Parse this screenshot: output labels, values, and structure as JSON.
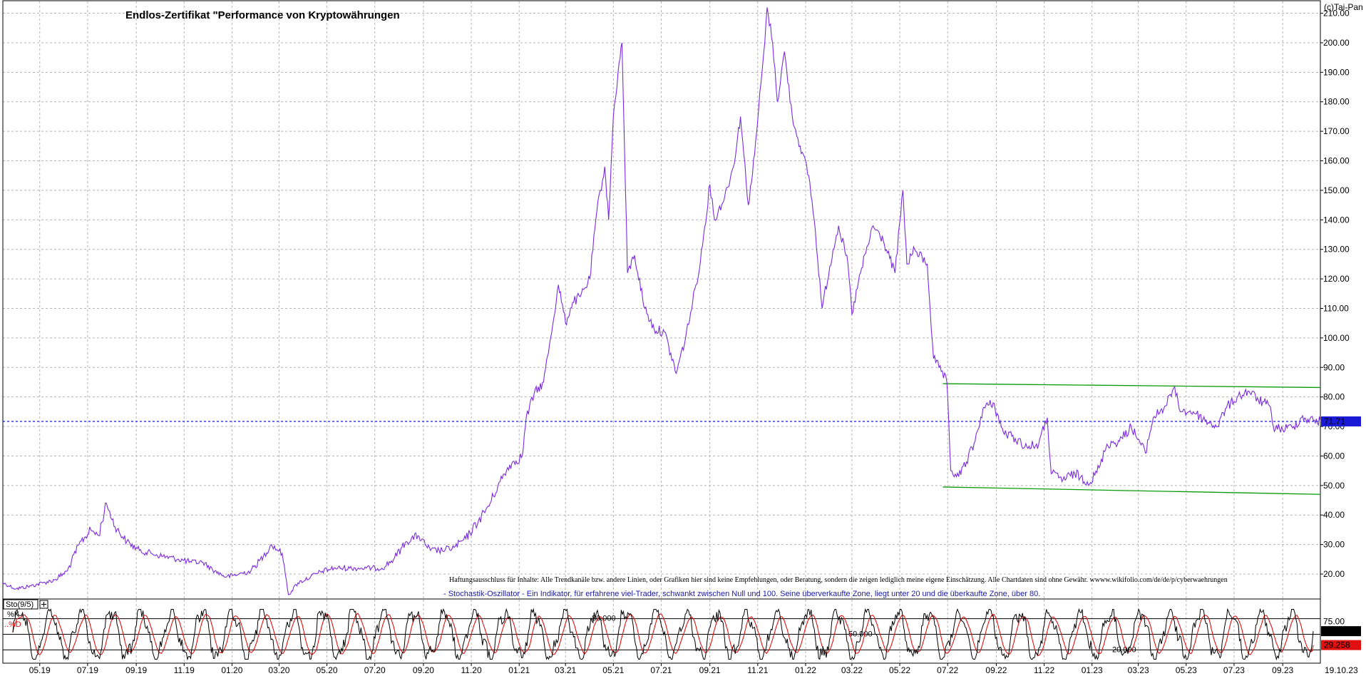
{
  "chart_data": [
    {
      "type": "line",
      "title": "Endlos-Zertifikat \"Performance von Kryptowährungen",
      "copyright": "(c)Tai-Pan",
      "x_ticks": [
        "05.19",
        "07.19",
        "09.19",
        "11.19",
        "01.20",
        "03.20",
        "05.20",
        "07.20",
        "09.20",
        "11.20",
        "01.21",
        "03.21",
        "05.21",
        "07.21",
        "09.21",
        "11.21",
        "01.22",
        "03.22",
        "05.22",
        "07.22",
        "09.22",
        "11.22",
        "01.23",
        "03.23",
        "05.23",
        "07.23",
        "09.23"
      ],
      "x_range": [
        "2019-03-15",
        "2023-10-19"
      ],
      "last_date": "19.10.23",
      "y_ticks": [
        "20.00",
        "30.00",
        "40.00",
        "50.00",
        "60.00",
        "70.00",
        "80.00",
        "90.00",
        "100.00",
        "110.00",
        "120.00",
        "130.00",
        "140.00",
        "150.00",
        "160.00",
        "170.00",
        "180.00",
        "190.00",
        "200.00",
        "210.00"
      ],
      "ylim": [
        13,
        214
      ],
      "grid": true,
      "last_value": "71.71",
      "price_line_color": "#7a2be2",
      "current_value_line": 71.71,
      "series": [
        {
          "points": [
            [
              "2019-03-15",
              17
            ],
            [
              "2019-04-01",
              15
            ],
            [
              "2019-04-20",
              16
            ],
            [
              "2019-05-05",
              17
            ],
            [
              "2019-05-20",
              18
            ],
            [
              "2019-06-05",
              21
            ],
            [
              "2019-06-20",
              30
            ],
            [
              "2019-07-05",
              35
            ],
            [
              "2019-07-15",
              33
            ],
            [
              "2019-07-25",
              44
            ],
            [
              "2019-08-05",
              36
            ],
            [
              "2019-08-20",
              31
            ],
            [
              "2019-09-05",
              28
            ],
            [
              "2019-09-20",
              27
            ],
            [
              "2019-10-05",
              26
            ],
            [
              "2019-10-25",
              25
            ],
            [
              "2019-11-10",
              24
            ],
            [
              "2019-11-25",
              24
            ],
            [
              "2019-12-10",
              21
            ],
            [
              "2019-12-25",
              19
            ],
            [
              "2020-01-10",
              20
            ],
            [
              "2020-01-25",
              21
            ],
            [
              "2020-02-10",
              26
            ],
            [
              "2020-02-20",
              30
            ],
            [
              "2020-03-05",
              27
            ],
            [
              "2020-03-13",
              13
            ],
            [
              "2020-03-25",
              17
            ],
            [
              "2020-04-10",
              19
            ],
            [
              "2020-04-25",
              21
            ],
            [
              "2020-05-10",
              22
            ],
            [
              "2020-05-30",
              22
            ],
            [
              "2020-06-20",
              22
            ],
            [
              "2020-07-10",
              22
            ],
            [
              "2020-07-25",
              25
            ],
            [
              "2020-08-10",
              31
            ],
            [
              "2020-08-25",
              33
            ],
            [
              "2020-09-10",
              28
            ],
            [
              "2020-09-25",
              28
            ],
            [
              "2020-10-10",
              29
            ],
            [
              "2020-10-25",
              32
            ],
            [
              "2020-11-10",
              38
            ],
            [
              "2020-11-25",
              44
            ],
            [
              "2020-12-05",
              50
            ],
            [
              "2020-12-20",
              57
            ],
            [
              "2021-01-05",
              60
            ],
            [
              "2021-01-10",
              73
            ],
            [
              "2021-01-20",
              81
            ],
            [
              "2021-02-01",
              85
            ],
            [
              "2021-02-10",
              100
            ],
            [
              "2021-02-20",
              118
            ],
            [
              "2021-03-01",
              105
            ],
            [
              "2021-03-10",
              112
            ],
            [
              "2021-03-20",
              114
            ],
            [
              "2021-04-01",
              120
            ],
            [
              "2021-04-10",
              143
            ],
            [
              "2021-04-20",
              158
            ],
            [
              "2021-04-25",
              140
            ],
            [
              "2021-05-01",
              175
            ],
            [
              "2021-05-07",
              190
            ],
            [
              "2021-05-12",
              200
            ],
            [
              "2021-05-19",
              122
            ],
            [
              "2021-05-28",
              128
            ],
            [
              "2021-06-10",
              110
            ],
            [
              "2021-06-22",
              103
            ],
            [
              "2021-07-05",
              102
            ],
            [
              "2021-07-20",
              88
            ],
            [
              "2021-08-01",
              100
            ],
            [
              "2021-08-10",
              112
            ],
            [
              "2021-08-20",
              126
            ],
            [
              "2021-09-01",
              152
            ],
            [
              "2021-09-07",
              140
            ],
            [
              "2021-09-20",
              148
            ],
            [
              "2021-10-01",
              158
            ],
            [
              "2021-10-10",
              175
            ],
            [
              "2021-10-20",
              145
            ],
            [
              "2021-10-28",
              162
            ],
            [
              "2021-11-05",
              186
            ],
            [
              "2021-11-10",
              200
            ],
            [
              "2021-11-13",
              212
            ],
            [
              "2021-11-20",
              200
            ],
            [
              "2021-11-26",
              180
            ],
            [
              "2021-12-05",
              197
            ],
            [
              "2021-12-15",
              175
            ],
            [
              "2021-12-25",
              165
            ],
            [
              "2022-01-05",
              155
            ],
            [
              "2022-01-12",
              140
            ],
            [
              "2022-01-22",
              110
            ],
            [
              "2022-02-05",
              130
            ],
            [
              "2022-02-12",
              138
            ],
            [
              "2022-02-24",
              125
            ],
            [
              "2022-03-01",
              108
            ],
            [
              "2022-03-12",
              122
            ],
            [
              "2022-03-28",
              138
            ],
            [
              "2022-04-10",
              133
            ],
            [
              "2022-04-25",
              122
            ],
            [
              "2022-05-05",
              150
            ],
            [
              "2022-05-10",
              125
            ],
            [
              "2022-05-20",
              130
            ],
            [
              "2022-06-05",
              125
            ],
            [
              "2022-06-13",
              93
            ],
            [
              "2022-06-20",
              90
            ],
            [
              "2022-06-30",
              85
            ],
            [
              "2022-07-05",
              55
            ],
            [
              "2022-07-15",
              53
            ],
            [
              "2022-07-25",
              58
            ],
            [
              "2022-08-05",
              65
            ],
            [
              "2022-08-15",
              76
            ],
            [
              "2022-08-28",
              78
            ],
            [
              "2022-09-10",
              68
            ],
            [
              "2022-09-25",
              66
            ],
            [
              "2022-10-10",
              63
            ],
            [
              "2022-10-25",
              64
            ],
            [
              "2022-11-05",
              73
            ],
            [
              "2022-11-10",
              54
            ],
            [
              "2022-11-25",
              52
            ],
            [
              "2022-12-10",
              54
            ],
            [
              "2022-12-30",
              51
            ],
            [
              "2023-01-10",
              56
            ],
            [
              "2023-01-20",
              64
            ],
            [
              "2023-02-05",
              65
            ],
            [
              "2023-02-20",
              70
            ],
            [
              "2023-03-10",
              61
            ],
            [
              "2023-03-20",
              73
            ],
            [
              "2023-04-05",
              77
            ],
            [
              "2023-04-15",
              83
            ],
            [
              "2023-04-25",
              75
            ],
            [
              "2023-05-10",
              75
            ],
            [
              "2023-05-25",
              72
            ],
            [
              "2023-06-10",
              70
            ],
            [
              "2023-06-20",
              76
            ],
            [
              "2023-07-05",
              80
            ],
            [
              "2023-07-20",
              82
            ],
            [
              "2023-08-01",
              79
            ],
            [
              "2023-08-15",
              77
            ],
            [
              "2023-08-20",
              70
            ],
            [
              "2023-09-01",
              69
            ],
            [
              "2023-09-15",
              70
            ],
            [
              "2023-09-25",
              73
            ],
            [
              "2023-10-10",
              72
            ],
            [
              "2023-10-19",
              71.71
            ]
          ]
        }
      ],
      "trendlines": [
        {
          "from": [
            "2022-06-25",
            84.5
          ],
          "to": [
            "2023-10-19",
            83.2
          ],
          "color": "#0a9a0a"
        },
        {
          "from": [
            "2022-06-25",
            49.5
          ],
          "to": [
            "2023-10-19",
            47
          ]
        }
      ],
      "disclaimer": "Haftungsausschluss für Inhalte: Alle Trendkanäle bzw. andere Linien, oder Grafiken hier sind keine Empfehlungen, oder Beratung, sondern die zeigen lediglich meine eigene Einschätzung. Alle Chartdaten sind ohne Gewähr.  wwww.wikifolio.com/de/de/p/cyberwaehrungen",
      "note": "- Stochastik-Oszillator - Ein Indikator, für erfahrene viel-Trader, schwankt zwischen Null und 100. Seine überverkaufte Zone, liegt unter 20 und die überkaufte Zone, über 80."
    },
    {
      "type": "line",
      "title": "Sto(9/5)",
      "ylim": [
        0,
        100
      ],
      "y_ticks": [
        "75.00"
      ],
      "levels": [
        {
          "value": 80,
          "label": "80.000"
        },
        {
          "value": 50,
          "label": "50.000"
        },
        {
          "value": 20,
          "label": "20.000"
        }
      ],
      "series": [
        {
          "name": "%K",
          "color": "#000000",
          "last_value": "55.98",
          "cycles": 43,
          "seed": 7
        },
        {
          "name": "%D",
          "color": "#e01010",
          "last_value": "29.258"
        }
      ]
    }
  ]
}
